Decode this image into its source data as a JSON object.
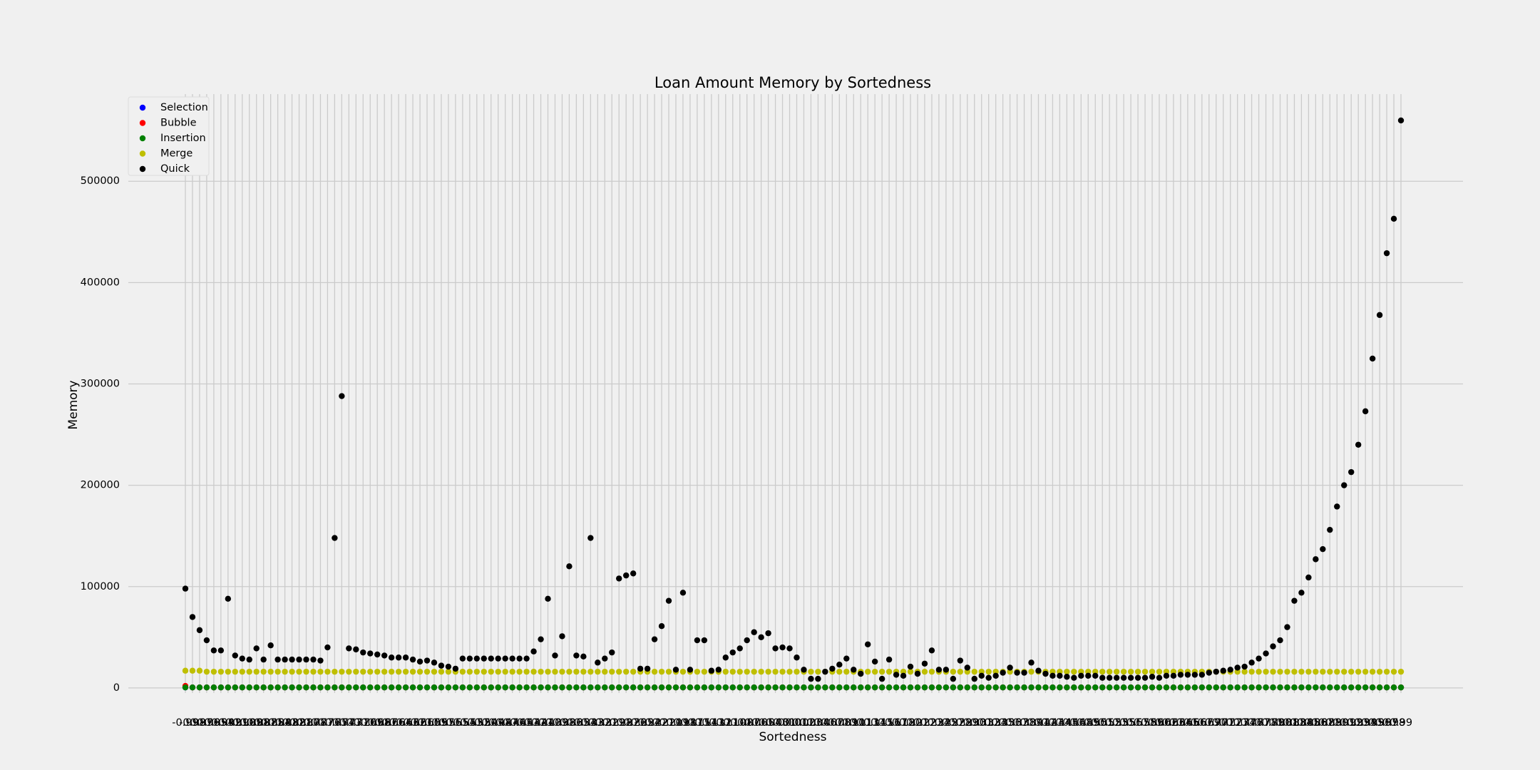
{
  "chart_data": {
    "type": "scatter",
    "title": "Loan Amount Memory by Sortedness",
    "x_label": "Sortedness",
    "y_label": "Memory",
    "categories": [
      "-0.99",
      "-0.98",
      "-0.97",
      "-0.96",
      "-0.95",
      "-0.94",
      "-0.92",
      "-0.91",
      "-0.90",
      "-0.89",
      "-0.88",
      "-0.87",
      "-0.85",
      "-0.84",
      "-0.83",
      "-0.82",
      "-0.81",
      "-0.80",
      "-0.78",
      "-0.77",
      "-0.76",
      "-0.75",
      "-0.74",
      "-0.73",
      "-0.71",
      "-0.70",
      "-0.69",
      "-0.68",
      "-0.67",
      "-0.66",
      "-0.64",
      "-0.63",
      "-0.62",
      "-0.61",
      "-0.60",
      "-0.59",
      "-0.57",
      "-0.56",
      "-0.55",
      "-0.54",
      "-0.53",
      "-0.52",
      "-0.50",
      "-0.49",
      "-0.48",
      "-0.47",
      "-0.46",
      "-0.45",
      "-0.43",
      "-0.42",
      "-0.41",
      "-0.40",
      "-0.39",
      "-0.38",
      "-0.36",
      "-0.35",
      "-0.34",
      "-0.33",
      "-0.32",
      "-0.31",
      "-0.29",
      "-0.28",
      "-0.27",
      "-0.26",
      "-0.25",
      "-0.24",
      "-0.22",
      "-0.21",
      "-0.20",
      "-0.19",
      "-0.18",
      "-0.17",
      "-0.15",
      "-0.14",
      "-0.13",
      "-0.12",
      "-0.11",
      "-0.10",
      "-0.08",
      "-0.07",
      "-0.06",
      "-0.05",
      "-0.04",
      "-0.03",
      "-0.01",
      "0.00",
      "0.01",
      "0.02",
      "0.03",
      "0.04",
      "0.06",
      "0.07",
      "0.08",
      "0.09",
      "0.10",
      "0.11",
      "0.13",
      "0.14",
      "0.15",
      "0.16",
      "0.17",
      "0.18",
      "0.20",
      "0.21",
      "0.22",
      "0.23",
      "0.24",
      "0.25",
      "0.27",
      "0.28",
      "0.29",
      "0.30",
      "0.31",
      "0.32",
      "0.34",
      "0.35",
      "0.36",
      "0.37",
      "0.38",
      "0.39",
      "0.41",
      "0.42",
      "0.43",
      "0.44",
      "0.45",
      "0.46",
      "0.48",
      "0.49",
      "0.50",
      "0.51",
      "0.52",
      "0.53",
      "0.55",
      "0.56",
      "0.57",
      "0.58",
      "0.59",
      "0.60",
      "0.62",
      "0.63",
      "0.64",
      "0.65",
      "0.66",
      "0.67",
      "0.69",
      "0.70",
      "0.71",
      "0.72",
      "0.73",
      "0.74",
      "0.76",
      "0.77",
      "0.78",
      "0.79",
      "0.80",
      "0.81",
      "0.83",
      "0.84",
      "0.85",
      "0.86",
      "0.87",
      "0.88",
      "0.90",
      "0.91",
      "0.92",
      "0.93",
      "0.94",
      "0.95",
      "0.96",
      "0.97",
      "0.98",
      "0.99"
    ],
    "series": [
      {
        "name": "Selection",
        "color": "#0000ff",
        "values": [
          500,
          500,
          500,
          500,
          500,
          500,
          500,
          500,
          500,
          500,
          500,
          500,
          500,
          500,
          500,
          500,
          500,
          500,
          500,
          500,
          500,
          500,
          500,
          500,
          500,
          500,
          500,
          500,
          500,
          500,
          500,
          500,
          500,
          500,
          500,
          500,
          500,
          500,
          500,
          500,
          500,
          500,
          500,
          500,
          500,
          500,
          500,
          500,
          500,
          500,
          500,
          500,
          500,
          500,
          500,
          500,
          500,
          500,
          500,
          500,
          500,
          500,
          500,
          500,
          500,
          500,
          500,
          500,
          500,
          500,
          500,
          500,
          500,
          500,
          500,
          500,
          500,
          500,
          500,
          500,
          500,
          500,
          500,
          500,
          500,
          500,
          500,
          500,
          500,
          500,
          500,
          500,
          500,
          500,
          500,
          500,
          500,
          500,
          500,
          500,
          500,
          500,
          500,
          500,
          500,
          500,
          500,
          500,
          500,
          500,
          500,
          500,
          500,
          500,
          500,
          500,
          500,
          500,
          500,
          500,
          500,
          500,
          500,
          500,
          500,
          500,
          500,
          500,
          500,
          500,
          500,
          500,
          500,
          500,
          500,
          500,
          500,
          500,
          500,
          500,
          500,
          500,
          500,
          500,
          500,
          500,
          500,
          500,
          500,
          500,
          500,
          500,
          500,
          500,
          500,
          500,
          500,
          500,
          500,
          500,
          500,
          500,
          500,
          500,
          500,
          500,
          500,
          500,
          500,
          500,
          500,
          500
        ]
      },
      {
        "name": "Bubble",
        "color": "#ff0000",
        "values": [
          2000,
          500,
          500,
          500,
          500,
          500,
          500,
          500,
          500,
          500,
          500,
          500,
          500,
          500,
          500,
          500,
          500,
          500,
          500,
          500,
          500,
          500,
          500,
          500,
          500,
          500,
          500,
          500,
          500,
          500,
          500,
          500,
          500,
          500,
          500,
          500,
          500,
          500,
          500,
          500,
          500,
          500,
          500,
          500,
          500,
          500,
          500,
          500,
          500,
          500,
          500,
          500,
          500,
          500,
          500,
          500,
          500,
          500,
          500,
          500,
          500,
          500,
          500,
          500,
          500,
          500,
          500,
          500,
          500,
          500,
          500,
          500,
          500,
          500,
          500,
          500,
          500,
          500,
          500,
          500,
          500,
          500,
          500,
          500,
          500,
          500,
          500,
          500,
          500,
          500,
          500,
          500,
          500,
          500,
          500,
          500,
          500,
          500,
          500,
          500,
          500,
          500,
          500,
          500,
          500,
          500,
          500,
          500,
          500,
          500,
          500,
          500,
          500,
          500,
          500,
          500,
          500,
          500,
          500,
          500,
          500,
          500,
          500,
          500,
          500,
          500,
          500,
          500,
          500,
          500,
          500,
          500,
          500,
          500,
          500,
          500,
          500,
          500,
          500,
          500,
          500,
          500,
          500,
          500,
          500,
          500,
          500,
          500,
          500,
          500,
          500,
          500,
          500,
          500,
          500,
          500,
          500,
          500,
          500,
          500,
          500,
          500,
          500,
          500,
          500,
          500,
          500,
          500,
          500,
          500,
          500,
          500
        ]
      },
      {
        "name": "Insertion",
        "color": "#008000",
        "values": [
          500,
          500,
          500,
          500,
          500,
          500,
          500,
          500,
          500,
          500,
          500,
          500,
          500,
          500,
          500,
          500,
          500,
          500,
          500,
          500,
          500,
          500,
          500,
          500,
          500,
          500,
          500,
          500,
          500,
          500,
          500,
          500,
          500,
          500,
          500,
          500,
          500,
          500,
          500,
          500,
          500,
          500,
          500,
          500,
          500,
          500,
          500,
          500,
          500,
          500,
          500,
          500,
          500,
          500,
          500,
          500,
          500,
          500,
          500,
          500,
          500,
          500,
          500,
          500,
          500,
          500,
          500,
          500,
          500,
          500,
          500,
          500,
          500,
          500,
          500,
          500,
          500,
          500,
          500,
          500,
          500,
          500,
          500,
          500,
          500,
          500,
          500,
          500,
          500,
          500,
          500,
          500,
          500,
          500,
          500,
          500,
          500,
          500,
          500,
          500,
          500,
          500,
          500,
          500,
          500,
          500,
          500,
          500,
          500,
          500,
          500,
          500,
          500,
          500,
          500,
          500,
          500,
          500,
          500,
          500,
          500,
          500,
          500,
          500,
          500,
          500,
          500,
          500,
          500,
          500,
          500,
          500,
          500,
          500,
          500,
          500,
          500,
          500,
          500,
          500,
          500,
          500,
          500,
          500,
          500,
          500,
          500,
          500,
          500,
          500,
          500,
          500,
          500,
          500,
          500,
          500,
          500,
          500,
          500,
          500,
          500,
          500,
          500,
          500,
          500,
          500,
          500,
          500,
          500,
          500,
          500,
          500
        ]
      },
      {
        "name": "Merge",
        "color": "#bfbf00",
        "values": [
          17000,
          17000,
          17000,
          16000,
          16000,
          16000,
          16000,
          16000,
          16000,
          16000,
          16000,
          16000,
          16000,
          16000,
          16000,
          16000,
          16000,
          16000,
          16000,
          16000,
          16000,
          16000,
          16000,
          16000,
          16000,
          16000,
          16000,
          16000,
          16000,
          16000,
          16000,
          16000,
          16000,
          16000,
          16000,
          16000,
          16000,
          16000,
          16000,
          16000,
          16000,
          16000,
          16000,
          16000,
          16000,
          16000,
          16000,
          16000,
          16000,
          16000,
          16000,
          16000,
          16000,
          16000,
          16000,
          16000,
          16000,
          16000,
          16000,
          16000,
          16000,
          16000,
          16000,
          16000,
          16000,
          16000,
          16000,
          16000,
          16000,
          16000,
          16000,
          16000,
          16000,
          16000,
          16000,
          16000,
          16000,
          16000,
          16000,
          16000,
          16000,
          16000,
          16000,
          16000,
          16000,
          16000,
          16000,
          16000,
          16000,
          16000,
          16000,
          16000,
          16000,
          16000,
          16000,
          16000,
          16000,
          16000,
          16000,
          16000,
          16000,
          16000,
          16000,
          16000,
          16000,
          16000,
          16000,
          16000,
          16000,
          16000,
          16000,
          16000,
          16000,
          16000,
          16000,
          16000,
          16000,
          16000,
          16000,
          16000,
          16000,
          16000,
          16000,
          16000,
          16000,
          16000,
          16000,
          16000,
          16000,
          16000,
          16000,
          16000,
          16000,
          16000,
          16000,
          16000,
          16000,
          16000,
          16000,
          16000,
          16000,
          16000,
          16000,
          16000,
          16000,
          16000,
          16000,
          16000,
          16000,
          16000,
          16000,
          16000,
          16000,
          16000,
          16000,
          16000,
          16000,
          16000,
          16000,
          16000,
          16000,
          16000,
          16000,
          16000,
          16000,
          16000,
          16000,
          16000,
          16000,
          16000,
          16000,
          16000
        ]
      },
      {
        "name": "Quick",
        "color": "#000000",
        "values": [
          98000,
          70000,
          57000,
          47000,
          37000,
          37000,
          88000,
          32000,
          29000,
          28000,
          39000,
          28000,
          42000,
          28000,
          28000,
          28000,
          28000,
          28000,
          28000,
          27000,
          40000,
          148000,
          288000,
          39000,
          38000,
          35000,
          34000,
          33000,
          32000,
          30000,
          30000,
          30000,
          28000,
          26000,
          27000,
          25000,
          22000,
          21000,
          19000,
          29000,
          29000,
          29000,
          29000,
          29000,
          29000,
          29000,
          29000,
          29000,
          29000,
          36000,
          48000,
          88000,
          32000,
          51000,
          120000,
          32000,
          31000,
          148000,
          25000,
          29000,
          35000,
          108000,
          111000,
          113000,
          19000,
          19000,
          48000,
          61000,
          86000,
          18000,
          94000,
          18000,
          47000,
          47000,
          17000,
          18000,
          30000,
          35000,
          39000,
          47000,
          55000,
          50000,
          54000,
          39000,
          40000,
          39000,
          30000,
          18000,
          9000,
          9000,
          16000,
          19000,
          23000,
          29000,
          18000,
          14000,
          43000,
          26000,
          9000,
          28000,
          13000,
          12000,
          21000,
          14000,
          24000,
          37000,
          18000,
          18000,
          9000,
          27000,
          20000,
          9000,
          12000,
          10000,
          12000,
          15000,
          20000,
          15000,
          15000,
          25000,
          17000,
          14000,
          12000,
          12000,
          11000,
          10000,
          12000,
          12000,
          12000,
          10000,
          10000,
          10000,
          10000,
          10000,
          10000,
          10000,
          11000,
          10000,
          12000,
          12000,
          13000,
          13000,
          13000,
          13000,
          15000,
          16000,
          17000,
          18000,
          20000,
          21000,
          25000,
          29000,
          34000,
          41000,
          47000,
          60000,
          86000,
          94000,
          109000,
          127000,
          137000,
          156000,
          179000,
          200000,
          213000,
          240000,
          273000,
          325000,
          368000,
          429000,
          463000,
          560000
        ]
      }
    ],
    "ylim": [
      -5000,
      586000
    ],
    "yticks": [
      0,
      100000,
      200000,
      300000,
      400000,
      500000
    ],
    "grid": true,
    "legend": "upper left"
  }
}
